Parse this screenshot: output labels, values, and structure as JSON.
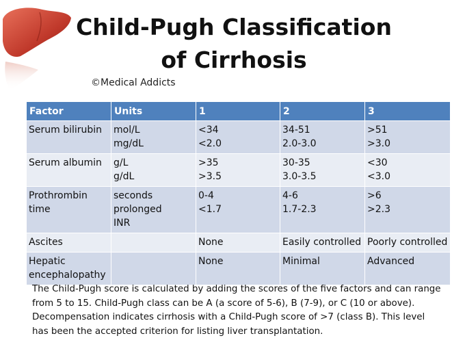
{
  "title": "Child-Pugh Classification of Cirrhosis",
  "credit": "©Medical Addicts",
  "table": {
    "headers": [
      "Factor",
      "Units",
      "1",
      "2",
      "3"
    ],
    "rows": [
      {
        "factor": "Serum bilirubin",
        "units": "mol/L\nmg/dL",
        "s1": "<34\n<2.0",
        "s2": "34-51\n2.0-3.0",
        "s3": ">51\n>3.0"
      },
      {
        "factor": "Serum albumin",
        "units": "g/L\ng/dL",
        "s1": ">35\n>3.5",
        "s2": "30-35\n3.0-3.5",
        "s3": "<30\n<3.0"
      },
      {
        "factor": "Prothrombin time",
        "units": "seconds prolonged\nINR",
        "s1": "0-4\n<1.7",
        "s2": "4-6\n1.7-2.3",
        "s3": ">6\n>2.3"
      },
      {
        "factor": "Ascites",
        "units": "",
        "s1": "None",
        "s2": "Easily controlled",
        "s3": "Poorly controlled"
      },
      {
        "factor": "Hepatic encephalopathy",
        "units": "",
        "s1": "None",
        "s2": "Minimal",
        "s3": "Advanced"
      }
    ]
  },
  "note": "The Child-Pugh score is calculated by adding the scores of the five factors and can range from 5 to 15. Child-Pugh class can be A (a score of 5-6), B (7-9), or C (10 or above). Decompensation indicates cirrhosis with a Child-Pugh score of >7 (class B). This level has been the accepted criterion for listing liver transplantation.",
  "colors": {
    "header": "#4f81bd",
    "row_odd": "#d0d8e8",
    "row_even": "#e9edf4",
    "liver": "#c0392b"
  }
}
